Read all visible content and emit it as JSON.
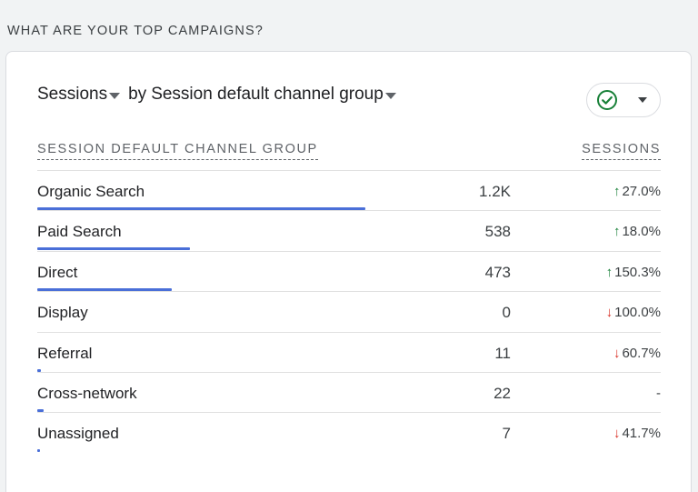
{
  "section_heading": "WHAT ARE YOUR TOP CAMPAIGNS?",
  "card": {
    "metric_label": "Sessions",
    "by_label": "by",
    "dimension_label": "Session default channel group",
    "status_icon": "check-circle-icon",
    "status_color": "#188038"
  },
  "columns": {
    "dimension": "SESSION DEFAULT CHANNEL GROUP",
    "metric": "SESSIONS"
  },
  "rows": [
    {
      "name": "Organic Search",
      "value": "1.2K",
      "change": "27.0%",
      "direction": "up",
      "share": 1.0
    },
    {
      "name": "Paid Search",
      "value": "538",
      "change": "18.0%",
      "direction": "up",
      "share": 0.465
    },
    {
      "name": "Direct",
      "value": "473",
      "change": "150.3%",
      "direction": "up",
      "share": 0.409
    },
    {
      "name": "Display",
      "value": "0",
      "change": "100.0%",
      "direction": "down",
      "share": 0.0
    },
    {
      "name": "Referral",
      "value": "11",
      "change": "60.7%",
      "direction": "down",
      "share": 0.01
    },
    {
      "name": "Cross-network",
      "value": "22",
      "change": "-",
      "direction": "none",
      "share": 0.019
    },
    {
      "name": "Unassigned",
      "value": "7",
      "change": "41.7%",
      "direction": "down",
      "share": 0.006
    }
  ],
  "colors": {
    "bar": "#4a6fd8",
    "up": "#188038",
    "down": "#d93025"
  }
}
